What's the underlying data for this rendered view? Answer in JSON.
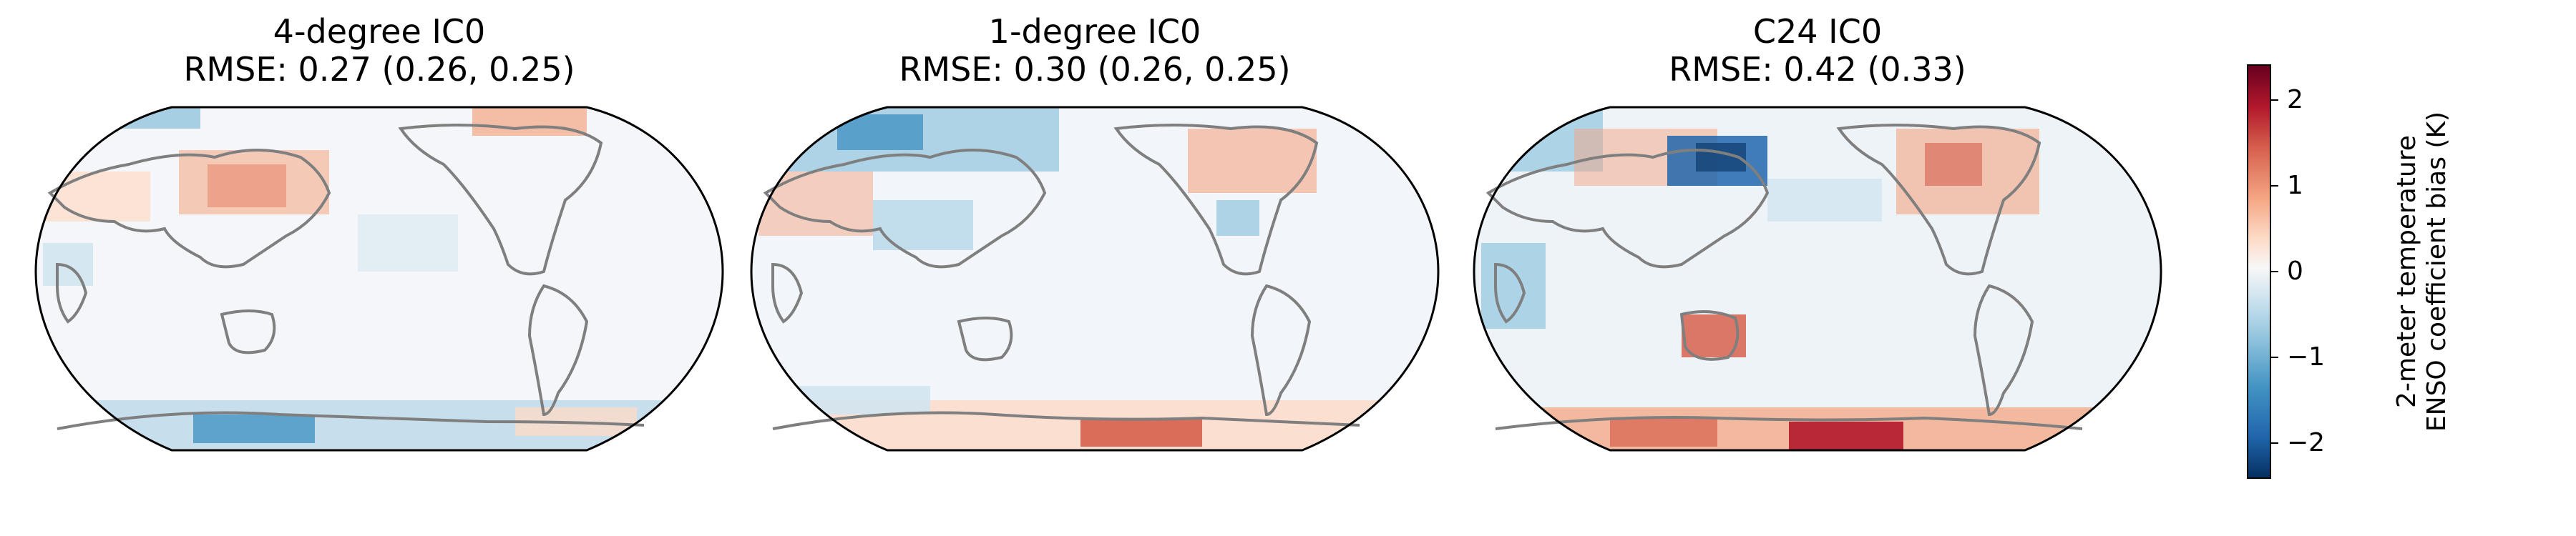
{
  "panels": [
    {
      "title": "4-degree IC0",
      "subtitle": "RMSE: 0.27 (0.26, 0.25)"
    },
    {
      "title": "1-degree IC0",
      "subtitle": "RMSE: 0.30 (0.26, 0.25)"
    },
    {
      "title": "C24 IC0",
      "subtitle": "RMSE: 0.42 (0.33)"
    }
  ],
  "colorbar": {
    "label_line1": "2-meter temperature",
    "label_line2": "ENSO coefficient bias (K)",
    "ticks": [
      "2",
      "1",
      "0",
      "−1",
      "−2"
    ],
    "range": [
      -2.4,
      2.4
    ],
    "colormap": "RdBu_r"
  },
  "colors": {
    "coastline": "#7f7f7f",
    "positive": "#b2182b",
    "negative": "#2166ac"
  }
}
